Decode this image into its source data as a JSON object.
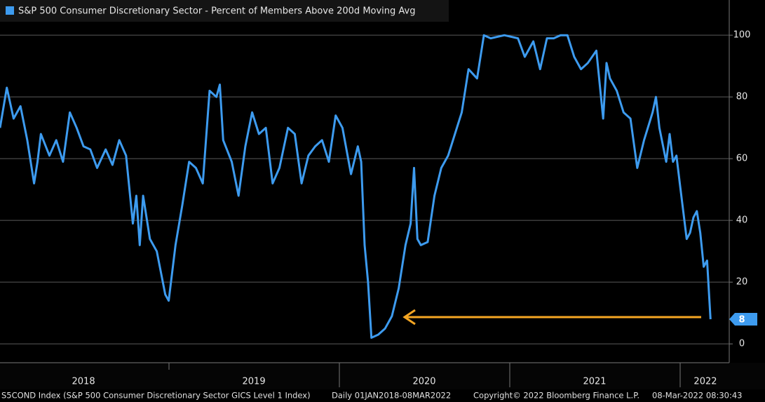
{
  "chart_data": {
    "type": "line",
    "source": "S5COND Index (S&P 500 Consumer Discretionary Sector GICS Level 1 Index)",
    "date_range": "Daily 01JAN2018-08MAR2022",
    "copyright": "Copyright© 2022 Bloomberg Finance L.P.",
    "timestamp": "08-Mar-2022 08:30:43",
    "xlim": [
      2018.01,
      2022.29
    ],
    "xticks": [
      {
        "value": 2018.5,
        "label": "2018"
      },
      {
        "value": 2019.5,
        "label": "2019"
      },
      {
        "value": 2020.5,
        "label": "2020"
      },
      {
        "value": 2021.5,
        "label": "2021"
      },
      {
        "value": 2022.15,
        "label": "2022"
      }
    ],
    "ylim": [
      -6.1,
      111.4
    ],
    "yticks": [
      0,
      20,
      40,
      60,
      80,
      100
    ],
    "grid": true,
    "series": [
      {
        "name": "S&P 500 Consumer Discretionary Sector - Percent of Members Above 200d Moving Avg",
        "color": "#3d9bef",
        "x": [
          2018.01,
          2018.05,
          2018.09,
          2018.13,
          2018.17,
          2018.21,
          2018.23,
          2018.25,
          2018.3,
          2018.34,
          2018.38,
          2018.42,
          2018.46,
          2018.5,
          2018.54,
          2018.58,
          2018.63,
          2018.67,
          2018.71,
          2018.75,
          2018.79,
          2018.81,
          2018.83,
          2018.85,
          2018.89,
          2018.93,
          2018.98,
          2019.0,
          2019.04,
          2019.08,
          2019.12,
          2019.16,
          2019.2,
          2019.24,
          2019.28,
          2019.3,
          2019.32,
          2019.37,
          2019.41,
          2019.45,
          2019.49,
          2019.53,
          2019.57,
          2019.61,
          2019.65,
          2019.7,
          2019.74,
          2019.78,
          2019.82,
          2019.86,
          2019.9,
          2019.94,
          2019.98,
          2020.02,
          2020.07,
          2020.11,
          2020.13,
          2020.15,
          2020.17,
          2020.19,
          2020.23,
          2020.27,
          2020.31,
          2020.35,
          2020.39,
          2020.42,
          2020.44,
          2020.46,
          2020.48,
          2020.52,
          2020.56,
          2020.6,
          2020.64,
          2020.68,
          2020.72,
          2020.76,
          2020.81,
          2020.85,
          2020.89,
          2020.97,
          2021.05,
          2021.09,
          2021.14,
          2021.18,
          2021.22,
          2021.26,
          2021.3,
          2021.34,
          2021.38,
          2021.42,
          2021.46,
          2021.51,
          2021.55,
          2021.57,
          2021.59,
          2021.63,
          2021.67,
          2021.71,
          2021.75,
          2021.79,
          2021.84,
          2021.86,
          2021.88,
          2021.92,
          2021.94,
          2021.96,
          2021.98,
          2022.0,
          2022.02,
          2022.04,
          2022.06,
          2022.08,
          2022.1,
          2022.12,
          2022.14,
          2022.16,
          2022.18
        ],
        "values": [
          70,
          83,
          73,
          77,
          66,
          52,
          59,
          68,
          61,
          66,
          59,
          75,
          70,
          64,
          63,
          57,
          63,
          58,
          66,
          61,
          39,
          48,
          32,
          48,
          34,
          30,
          16,
          14,
          32,
          45,
          59,
          57,
          52,
          82,
          80,
          84,
          66,
          59,
          48,
          64,
          75,
          68,
          70,
          52,
          57,
          70,
          68,
          52,
          61,
          64,
          66,
          59,
          74,
          70,
          55,
          64,
          59,
          32,
          20,
          2,
          3,
          5,
          9,
          18,
          32,
          39,
          57,
          34,
          32,
          33,
          48,
          57,
          61,
          68,
          75,
          89,
          86,
          100,
          99,
          100,
          99,
          93,
          98,
          89,
          99,
          99,
          100,
          100,
          93,
          89,
          91,
          95,
          73,
          91,
          86,
          82,
          75,
          73,
          57,
          66,
          75,
          80,
          70,
          59,
          68,
          59,
          61,
          52,
          43,
          34,
          36,
          41,
          43,
          36,
          25,
          27,
          8
        ]
      }
    ]
  }
}
